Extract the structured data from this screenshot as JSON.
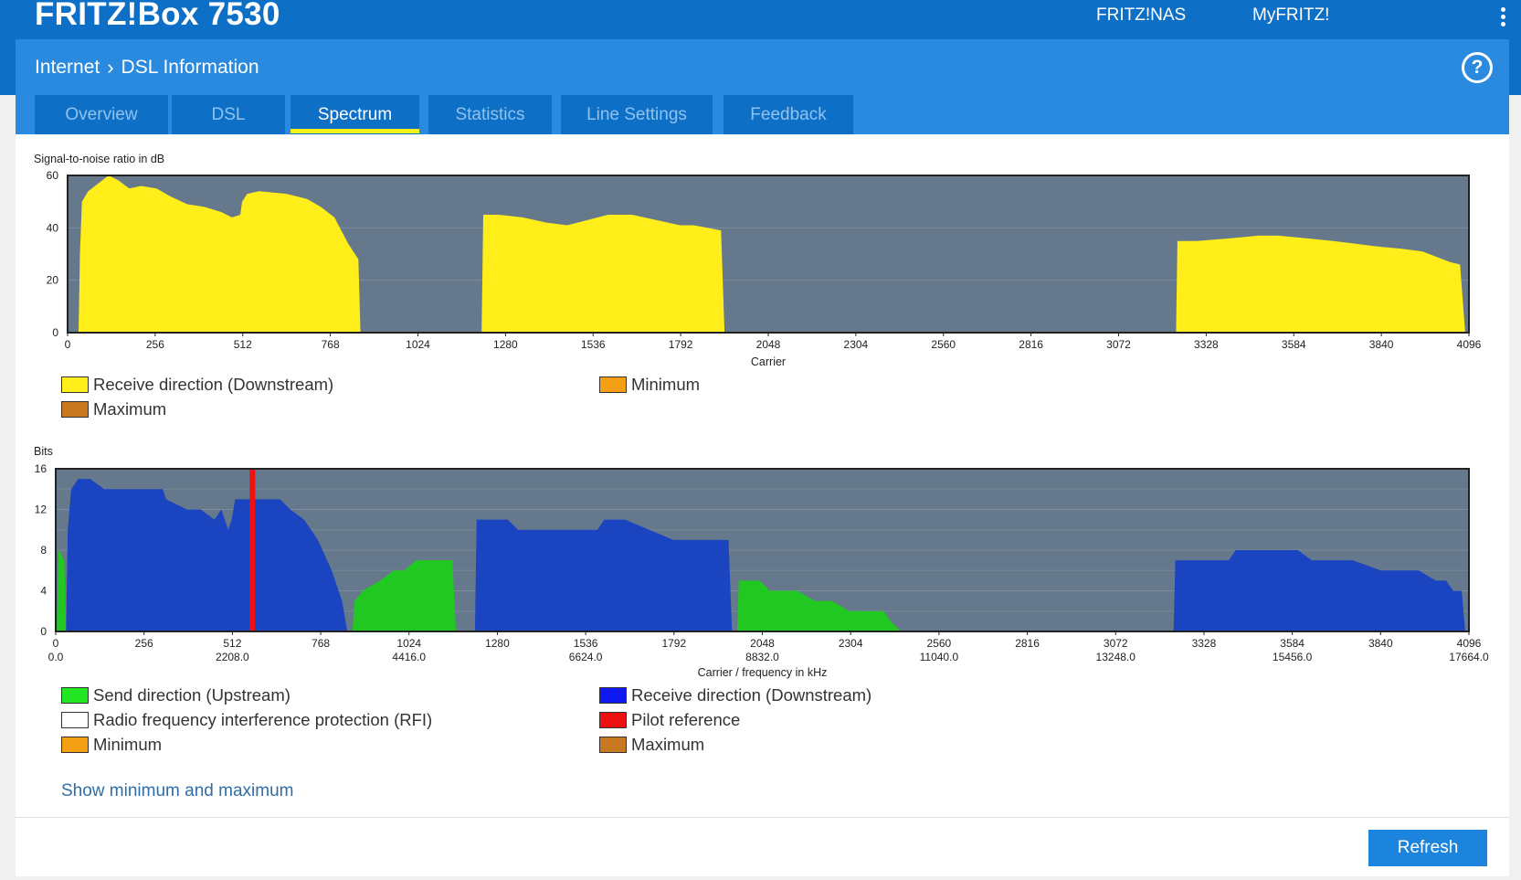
{
  "header": {
    "brand": "FRITZ!Box 7530",
    "links": [
      "FRITZ!NAS",
      "MyFRITZ!"
    ]
  },
  "breadcrumb": {
    "section": "Internet",
    "page": "DSL Information"
  },
  "tabs": [
    {
      "label": "Overview",
      "active": false
    },
    {
      "label": "DSL",
      "active": false
    },
    {
      "label": "Spectrum",
      "active": true
    },
    {
      "label": "Statistics",
      "active": false
    },
    {
      "label": "Line Settings",
      "active": false
    },
    {
      "label": "Feedback",
      "active": false
    }
  ],
  "colors": {
    "plot_bg": "#66788c",
    "snr_fill": "#ffee1a",
    "upstream": "#21c821",
    "downstream": "#1a44c0",
    "pilot": "#ee1111",
    "minimum": "#f59f14",
    "maximum": "#c8781e",
    "accent": "#2a8ae0"
  },
  "chart_data": [
    {
      "type": "area",
      "title": "Signal-to-noise ratio in dB",
      "xlabel": "Carrier",
      "ylabel": "Signal-to-noise ratio in dB",
      "xlim": [
        0,
        4096
      ],
      "ylim": [
        0,
        60
      ],
      "xticks": [
        0,
        256,
        512,
        768,
        1024,
        1280,
        1536,
        1792,
        2048,
        2304,
        2560,
        2816,
        3072,
        3328,
        3584,
        3840,
        4096
      ],
      "yticks": [
        0,
        20,
        40,
        60
      ],
      "series": [
        {
          "name": "Receive direction (Downstream)",
          "segments": [
            [
              [
                32,
                0
              ],
              [
                36,
                30
              ],
              [
                42,
                50
              ],
              [
                60,
                54
              ],
              [
                90,
                57
              ],
              [
                120,
                60
              ],
              [
                150,
                58
              ],
              [
                180,
                55
              ],
              [
                215,
                56
              ],
              [
                260,
                55
              ],
              [
                300,
                52
              ],
              [
                350,
                49
              ],
              [
                400,
                48
              ],
              [
                450,
                46
              ],
              [
                480,
                44
              ],
              [
                505,
                45
              ],
              [
                510,
                50
              ],
              [
                525,
                53
              ],
              [
                560,
                54
              ],
              [
                640,
                53
              ],
              [
                700,
                51
              ],
              [
                740,
                48
              ],
              [
                780,
                44
              ],
              [
                800,
                39
              ],
              [
                820,
                34
              ],
              [
                850,
                28
              ],
              [
                856,
                0
              ]
            ],
            [
              [
                1210,
                0
              ],
              [
                1215,
                45
              ],
              [
                1260,
                45
              ],
              [
                1330,
                44
              ],
              [
                1400,
                42
              ],
              [
                1460,
                41
              ],
              [
                1520,
                43
              ],
              [
                1580,
                45
              ],
              [
                1650,
                45
              ],
              [
                1720,
                43
              ],
              [
                1790,
                41
              ],
              [
                1830,
                41
              ],
              [
                1870,
                40
              ],
              [
                1910,
                39
              ],
              [
                1920,
                0
              ]
            ],
            [
              [
                3240,
                0
              ],
              [
                3244,
                35
              ],
              [
                3300,
                35
              ],
              [
                3400,
                36
              ],
              [
                3480,
                37
              ],
              [
                3540,
                37
              ],
              [
                3620,
                36
              ],
              [
                3700,
                35
              ],
              [
                3760,
                34
              ],
              [
                3820,
                33
              ],
              [
                3900,
                32
              ],
              [
                3960,
                31
              ],
              [
                4000,
                29
              ],
              [
                4040,
                27
              ],
              [
                4070,
                26
              ],
              [
                4085,
                0
              ]
            ]
          ]
        }
      ],
      "legend": [
        "Receive direction (Downstream)",
        "Minimum",
        "Maximum"
      ]
    },
    {
      "type": "area",
      "title": "Bits",
      "xlabel": "Carrier / frequency in kHz",
      "ylabel": "Bits",
      "xlim": [
        0,
        4096
      ],
      "ylim": [
        0,
        16
      ],
      "xticks": [
        0,
        256,
        512,
        768,
        1024,
        1280,
        1536,
        1792,
        2048,
        2304,
        2560,
        2816,
        3072,
        3328,
        3584,
        3840,
        4096
      ],
      "freq_labels": {
        "0": "0.0",
        "512": "2208.0",
        "1024": "4416.0",
        "1536": "6624.0",
        "2048": "8832.0",
        "2560": "11040.0",
        "3072": "13248.0",
        "3584": "15456.0",
        "4096": "17664.0"
      },
      "yticks": [
        0,
        4,
        8,
        12,
        16
      ],
      "series": [
        {
          "name": "Send direction (Upstream)",
          "segments": [
            [
              [
                3,
                0
              ],
              [
                8,
                8
              ],
              [
                25,
                7
              ],
              [
                30,
                0
              ]
            ],
            [
              [
                860,
                0
              ],
              [
                866,
                3
              ],
              [
                890,
                4
              ],
              [
                940,
                5
              ],
              [
                980,
                6
              ],
              [
                1010,
                6
              ],
              [
                1045,
                7
              ],
              [
                1100,
                7
              ],
              [
                1150,
                7
              ],
              [
                1160,
                0
              ]
            ],
            [
              [
                1975,
                0
              ],
              [
                1980,
                5
              ],
              [
                2040,
                5
              ],
              [
                2070,
                4
              ],
              [
                2150,
                4
              ],
              [
                2200,
                3
              ],
              [
                2250,
                3
              ],
              [
                2300,
                2
              ],
              [
                2400,
                2
              ],
              [
                2420,
                1
              ],
              [
                2450,
                0
              ]
            ]
          ]
        },
        {
          "name": "Receive direction (Downstream)",
          "segments": [
            [
              [
                30,
                0
              ],
              [
                35,
                10
              ],
              [
                45,
                14
              ],
              [
                65,
                15
              ],
              [
                100,
                15
              ],
              [
                140,
                14
              ],
              [
                200,
                14
              ],
              [
                310,
                14
              ],
              [
                320,
                13
              ],
              [
                380,
                12
              ],
              [
                420,
                12
              ],
              [
                460,
                11
              ],
              [
                480,
                12
              ],
              [
                500,
                10
              ],
              [
                510,
                11
              ],
              [
                520,
                13
              ],
              [
                560,
                13
              ],
              [
                650,
                13
              ],
              [
                680,
                12
              ],
              [
                720,
                11
              ],
              [
                760,
                9
              ],
              [
                800,
                6
              ],
              [
                830,
                3
              ],
              [
                845,
                0
              ]
            ],
            [
              [
                1215,
                0
              ],
              [
                1220,
                11
              ],
              [
                1310,
                11
              ],
              [
                1340,
                10
              ],
              [
                1400,
                10
              ],
              [
                1470,
                10
              ],
              [
                1530,
                10
              ],
              [
                1570,
                10
              ],
              [
                1590,
                11
              ],
              [
                1650,
                11
              ],
              [
                1720,
                10
              ],
              [
                1790,
                9
              ],
              [
                1950,
                9
              ],
              [
                1960,
                0
              ]
            ],
            [
              [
                3240,
                0
              ],
              [
                3245,
                7
              ],
              [
                3400,
                7
              ],
              [
                3420,
                8
              ],
              [
                3480,
                8
              ],
              [
                3540,
                8
              ],
              [
                3600,
                8
              ],
              [
                3640,
                7
              ],
              [
                3760,
                7
              ],
              [
                3840,
                6
              ],
              [
                3950,
                6
              ],
              [
                4000,
                5
              ],
              [
                4030,
                5
              ],
              [
                4050,
                4
              ],
              [
                4075,
                4
              ],
              [
                4085,
                0
              ]
            ]
          ]
        }
      ],
      "pilot_reference_carrier": 570,
      "legend": [
        "Send direction (Upstream)",
        "Receive direction (Downstream)",
        "Radio frequency interference protection (RFI)",
        "Pilot reference",
        "Minimum",
        "Maximum"
      ]
    }
  ],
  "legends": {
    "snr": [
      {
        "label": "Receive direction (Downstream)",
        "color": "#ffee1a"
      },
      {
        "label": "Minimum",
        "color": "#f59f14"
      },
      {
        "label": "Maximum",
        "color": "#c8781e"
      }
    ],
    "bits": [
      {
        "label": "Send direction (Upstream)",
        "color": "#21e621"
      },
      {
        "label": "Receive direction (Downstream)",
        "color": "#0f18ee"
      },
      {
        "label": "Radio frequency interference protection (RFI)",
        "color": "#ffffff"
      },
      {
        "label": "Pilot reference",
        "color": "#ee1111"
      },
      {
        "label": "Minimum",
        "color": "#f59f14"
      },
      {
        "label": "Maximum",
        "color": "#c8781e"
      }
    ]
  },
  "actions": {
    "show_minmax": "Show minimum and maximum",
    "refresh": "Refresh"
  }
}
